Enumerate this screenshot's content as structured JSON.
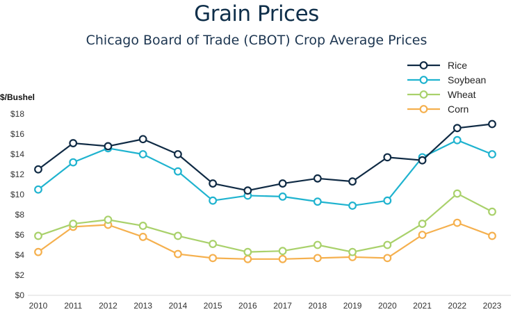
{
  "chart_data": {
    "type": "line",
    "title": "Grain Prices",
    "subtitle": "Chicago Board of Trade (CBOT) Crop Average Prices",
    "xlabel": "",
    "ylabel": "$/Bushel",
    "ylim": [
      0,
      18
    ],
    "yticks": [
      0,
      2,
      4,
      6,
      8,
      10,
      12,
      14,
      16,
      18
    ],
    "ytick_labels": [
      "$0",
      "$2",
      "$4",
      "$6",
      "$8",
      "$10",
      "$12",
      "$14",
      "$16",
      "$18"
    ],
    "x": [
      "2010",
      "2011",
      "2012",
      "2013",
      "2014",
      "2015",
      "2016",
      "2017",
      "2018",
      "2019",
      "2020",
      "2021",
      "2022",
      "2023"
    ],
    "grid": false,
    "legend_position": "top-right",
    "series": [
      {
        "name": "Rice",
        "color": "#0f2a44",
        "values": [
          12.5,
          15.1,
          14.8,
          15.5,
          14.0,
          11.1,
          10.4,
          11.1,
          11.6,
          11.3,
          13.7,
          13.4,
          16.6,
          17.0
        ]
      },
      {
        "name": "Soybean",
        "color": "#1fb3cf",
        "values": [
          10.5,
          13.2,
          14.6,
          14.0,
          12.3,
          9.4,
          9.9,
          9.8,
          9.3,
          8.9,
          9.4,
          13.7,
          15.4,
          14.0
        ]
      },
      {
        "name": "Wheat",
        "color": "#a9d16b",
        "values": [
          5.9,
          7.1,
          7.5,
          6.9,
          5.9,
          5.1,
          4.3,
          4.4,
          5.0,
          4.3,
          5.0,
          7.1,
          10.1,
          8.3
        ]
      },
      {
        "name": "Corn",
        "color": "#f5b04e",
        "values": [
          4.3,
          6.8,
          7.0,
          5.8,
          4.1,
          3.7,
          3.6,
          3.6,
          3.7,
          3.8,
          3.7,
          6.0,
          7.2,
          5.9
        ]
      }
    ]
  }
}
